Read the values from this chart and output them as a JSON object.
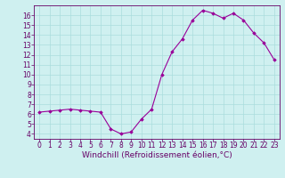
{
  "x": [
    0,
    1,
    2,
    3,
    4,
    5,
    6,
    7,
    8,
    9,
    10,
    11,
    12,
    13,
    14,
    15,
    16,
    17,
    18,
    19,
    20,
    21,
    22,
    23
  ],
  "y": [
    6.2,
    6.3,
    6.4,
    6.5,
    6.4,
    6.3,
    6.2,
    4.5,
    4.0,
    4.2,
    5.5,
    6.5,
    10.0,
    12.3,
    13.6,
    15.5,
    16.5,
    16.2,
    15.7,
    16.2,
    15.5,
    14.2,
    13.2,
    11.5
  ],
  "line_color": "#990099",
  "marker": "D",
  "marker_size": 1.8,
  "line_width": 0.8,
  "xlabel": "Windchill (Refroidissement éolien,°C)",
  "xlim": [
    -0.5,
    23.5
  ],
  "ylim": [
    3.5,
    17.0
  ],
  "yticks": [
    4,
    5,
    6,
    7,
    8,
    9,
    10,
    11,
    12,
    13,
    14,
    15,
    16
  ],
  "xticks": [
    0,
    1,
    2,
    3,
    4,
    5,
    6,
    7,
    8,
    9,
    10,
    11,
    12,
    13,
    14,
    15,
    16,
    17,
    18,
    19,
    20,
    21,
    22,
    23
  ],
  "background_color": "#cff0f0",
  "grid_color": "#aadddd",
  "axis_color": "#660066",
  "tick_label_color": "#660066",
  "xlabel_color": "#660066",
  "xlabel_fontsize": 6.5,
  "tick_fontsize": 5.5
}
